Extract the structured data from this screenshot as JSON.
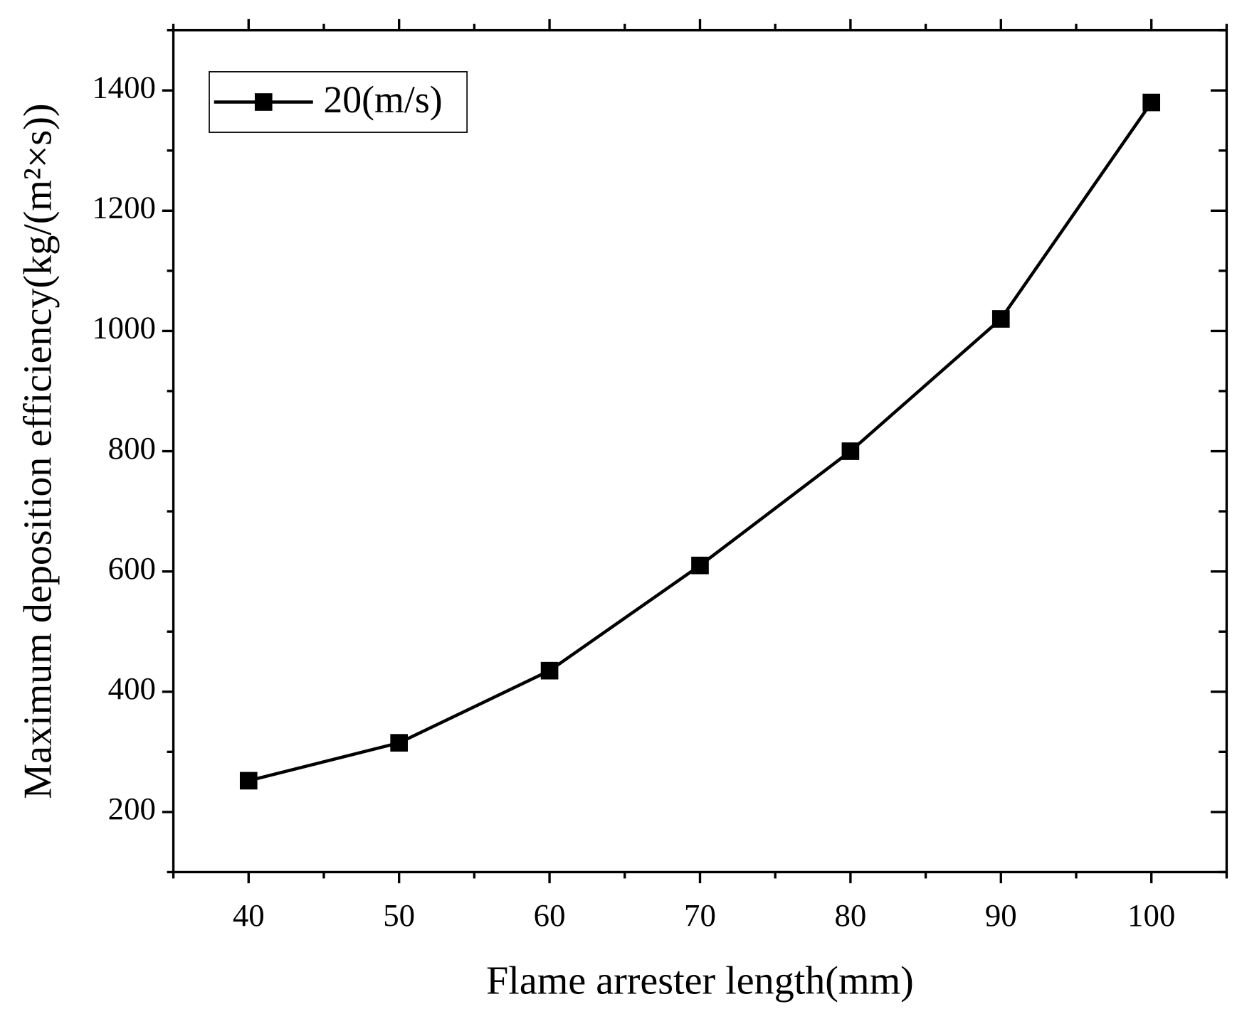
{
  "chart_data": {
    "type": "line",
    "x_label": "Flame arrester length(mm)",
    "y_label": "Maximum deposition efficiency(kg/(m²×s))",
    "x": [
      40,
      50,
      60,
      70,
      80,
      90,
      100
    ],
    "series": [
      {
        "name": "20(m/s)",
        "color": "#000000",
        "values": [
          252,
          315,
          435,
          610,
          800,
          1020,
          1380
        ]
      }
    ],
    "xlim": [
      35,
      105
    ],
    "xticks": [
      40,
      50,
      60,
      70,
      80,
      90,
      100
    ],
    "ylim": [
      100,
      1500
    ],
    "yticks": [
      200,
      400,
      600,
      800,
      1000,
      1200,
      1400
    ],
    "grid": false,
    "legend": "top-left"
  }
}
